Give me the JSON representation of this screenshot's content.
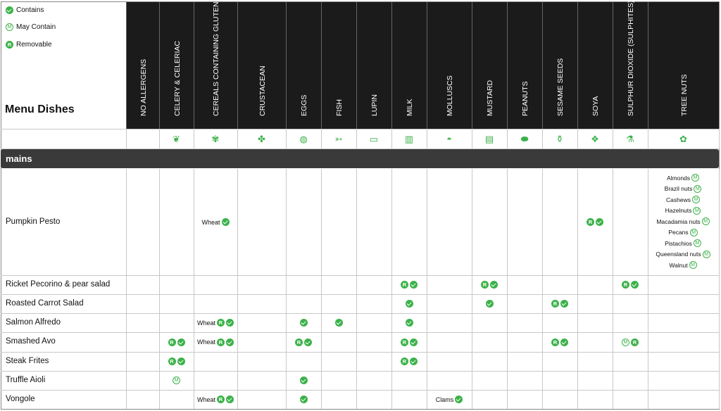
{
  "legend": {
    "contains": "Contains",
    "may_contain": "May Contain",
    "removable": "Removable",
    "may_symbol": "M",
    "removable_symbol": "R"
  },
  "title": "Menu Dishes",
  "allergens": [
    {
      "label": "NO ALLERGENS",
      "icon": "none"
    },
    {
      "label": "CELERY & CELERIAC",
      "icon": "celery-icon"
    },
    {
      "label": "CEREALS CONTAINING GLUTEN",
      "icon": "wheat-icon"
    },
    {
      "label": "CRUSTACEAN",
      "icon": "crab-icon"
    },
    {
      "label": "EGGS",
      "icon": "egg-icon"
    },
    {
      "label": "FISH",
      "icon": "fish-icon"
    },
    {
      "label": "LUPIN",
      "icon": "lupin-icon"
    },
    {
      "label": "MILK",
      "icon": "milk-icon"
    },
    {
      "label": "MOLLUSCS",
      "icon": "mollusc-icon"
    },
    {
      "label": "MUSTARD",
      "icon": "mustard-icon"
    },
    {
      "label": "PEANUTS",
      "icon": "peanut-icon"
    },
    {
      "label": "SESAME SEEDS",
      "icon": "sesame-icon"
    },
    {
      "label": "SOYA",
      "icon": "soya-icon"
    },
    {
      "label": "SULPHUR DIOXIDE (SULPHITES)",
      "icon": "wine-bottle-icon"
    },
    {
      "label": "TREE NUTS",
      "icon": "tree-nut-icon"
    }
  ],
  "section": "mains",
  "dishes": [
    {
      "name": "Pumpkin Pesto",
      "marks": [
        {
          "col": 2,
          "text": "Wheat",
          "badges": [
            "C"
          ]
        },
        {
          "col": 12,
          "text": "",
          "badges": [
            "R",
            "C"
          ]
        }
      ],
      "tree_nuts": [
        {
          "name": "Almonds",
          "badge": "M"
        },
        {
          "name": "Brazil nuts",
          "badge": "M"
        },
        {
          "name": "Cashews",
          "badge": "M"
        },
        {
          "name": "Hazelnuts",
          "badge": "M"
        },
        {
          "name": "Macadamia nuts",
          "badge": "M"
        },
        {
          "name": "Pecans",
          "badge": "M"
        },
        {
          "name": "Pistachios",
          "badge": "M"
        },
        {
          "name": "Queensland nuts",
          "badge": "M"
        },
        {
          "name": "Walnut",
          "badge": "M"
        }
      ]
    },
    {
      "name": "Ricket Pecorino & pear salad",
      "marks": [
        {
          "col": 7,
          "text": "",
          "badges": [
            "R",
            "C"
          ]
        },
        {
          "col": 9,
          "text": "",
          "badges": [
            "R",
            "C"
          ]
        },
        {
          "col": 13,
          "text": "",
          "badges": [
            "R",
            "C"
          ]
        }
      ]
    },
    {
      "name": "Roasted Carrot Salad",
      "marks": [
        {
          "col": 7,
          "text": "",
          "badges": [
            "C"
          ]
        },
        {
          "col": 9,
          "text": "",
          "badges": [
            "C"
          ]
        },
        {
          "col": 11,
          "text": "",
          "badges": [
            "R",
            "C"
          ]
        }
      ]
    },
    {
      "name": "Salmon Alfredo",
      "marks": [
        {
          "col": 2,
          "text": "Wheat",
          "badges": [
            "R",
            "C"
          ]
        },
        {
          "col": 4,
          "text": "",
          "badges": [
            "C"
          ]
        },
        {
          "col": 5,
          "text": "",
          "badges": [
            "C"
          ]
        },
        {
          "col": 7,
          "text": "",
          "badges": [
            "C"
          ]
        }
      ]
    },
    {
      "name": "Smashed Avo",
      "marks": [
        {
          "col": 1,
          "text": "",
          "badges": [
            "R",
            "C"
          ]
        },
        {
          "col": 2,
          "text": "Wheat",
          "badges": [
            "R",
            "C"
          ]
        },
        {
          "col": 4,
          "text": "",
          "badges": [
            "R",
            "C"
          ]
        },
        {
          "col": 7,
          "text": "",
          "badges": [
            "R",
            "C"
          ]
        },
        {
          "col": 11,
          "text": "",
          "badges": [
            "R",
            "C"
          ]
        },
        {
          "col": 13,
          "text": "",
          "badges": [
            "M",
            "R"
          ]
        }
      ]
    },
    {
      "name": "Steak Frites",
      "marks": [
        {
          "col": 1,
          "text": "",
          "badges": [
            "R",
            "C"
          ]
        },
        {
          "col": 7,
          "text": "",
          "badges": [
            "R",
            "C"
          ]
        }
      ]
    },
    {
      "name": "Truffle Aioli",
      "marks": [
        {
          "col": 1,
          "text": "",
          "badges": [
            "M"
          ]
        },
        {
          "col": 4,
          "text": "",
          "badges": [
            "C"
          ]
        }
      ]
    },
    {
      "name": "Vongole",
      "marks": [
        {
          "col": 2,
          "text": "Wheat",
          "badges": [
            "R",
            "C"
          ]
        },
        {
          "col": 4,
          "text": "",
          "badges": [
            "C"
          ]
        },
        {
          "col": 8,
          "text": "Clams",
          "badges": [
            "C"
          ]
        }
      ]
    }
  ],
  "colors": {
    "accent": "#3cb24a",
    "header_bg": "#1b1b1b",
    "section_bg": "#3a3a3a"
  }
}
